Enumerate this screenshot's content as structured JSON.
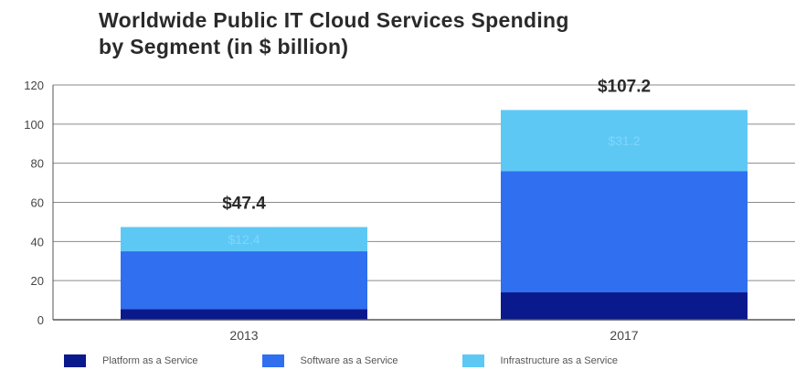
{
  "chart_data": {
    "type": "bar",
    "stacked": true,
    "title_lines": [
      "Worldwide Public IT Cloud Services Spending",
      "by Segment (in $ billion)"
    ],
    "categories": [
      "2013",
      "2017"
    ],
    "totals": [
      "$47.4",
      "$107.2"
    ],
    "series": [
      {
        "name": "Platform as a Service",
        "values": [
          5.5,
          14.0
        ],
        "color": "#0a1a8c"
      },
      {
        "name": "Software as a Service",
        "values": [
          29.5,
          62.0
        ],
        "color": "#2f6ff0"
      },
      {
        "name": "Infrastructure as a Service",
        "values": [
          12.4,
          31.2
        ],
        "color": "#5ec8f5"
      }
    ],
    "segment_labels": [
      {
        "category": "2013",
        "series": "Infrastructure as a Service",
        "text": "$12.4"
      },
      {
        "category": "2017",
        "series": "Infrastructure as a Service",
        "text": "$31.2"
      }
    ],
    "ylim": [
      0,
      120
    ],
    "yticks": [
      0,
      20,
      40,
      60,
      80,
      100,
      120
    ],
    "grid": true,
    "legend_position": "bottom"
  }
}
